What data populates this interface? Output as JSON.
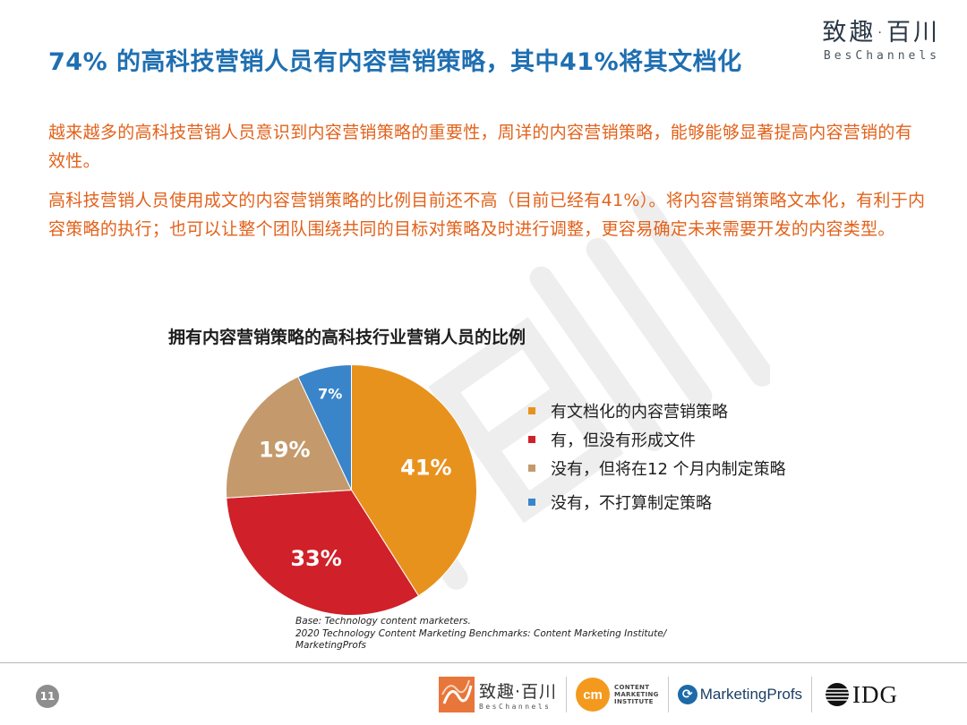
{
  "brand": {
    "name_cn": "致趣·百川",
    "name_en": "BesChannels"
  },
  "header": {
    "title": "74% 的高科技营销人员有内容营销策略，其中41%将其文档化"
  },
  "body": {
    "para1": "越来越多的高科技营销人员意识到内容营销策略的重要性，周详的内容营销策略，能够能够显著提高内容营销的有效性。",
    "para2": "高科技营销人员使用成文的内容营销策略的比例目前还不高（目前已经有41%）。将内容营销策略文本化，有利于内容策略的执行；也可以让整个团队围绕共同的目标对策略及时进行调整，更容易确定未来需要开发的内容类型。"
  },
  "chart_data": {
    "type": "pie",
    "title": "拥有内容营销策略的高科技行业营销人员的比例",
    "categories": [
      "有文档化的内容营销策略",
      "有，但没有形成文件",
      "没有，但将在12 个月内制定策略",
      "没有，不打算制定策略"
    ],
    "values": [
      41,
      33,
      19,
      7
    ],
    "labels": [
      "41%",
      "33%",
      "19%",
      "7%"
    ],
    "colors": [
      "#e8921e",
      "#d0202a",
      "#c49a6c",
      "#3a85c9"
    ],
    "legend": "right"
  },
  "source": {
    "line1": "Base: Technology content marketers.",
    "line2": "2020 Technology Content Marketing Benchmarks: Content Marketing Institute/",
    "line3": "MarketingProfs"
  },
  "footer": {
    "page_number": "11",
    "bes_cn": "致趣·百川",
    "bes_en": "BesChannels",
    "cmi_badge": "cm",
    "cmi_line1": "CONTENT",
    "cmi_line2": "MARKETING",
    "cmi_line3": "INSTITUTE",
    "mp_mark": "⟳",
    "mp_text": "MarketingProfs",
    "idg_text": "IDG"
  }
}
